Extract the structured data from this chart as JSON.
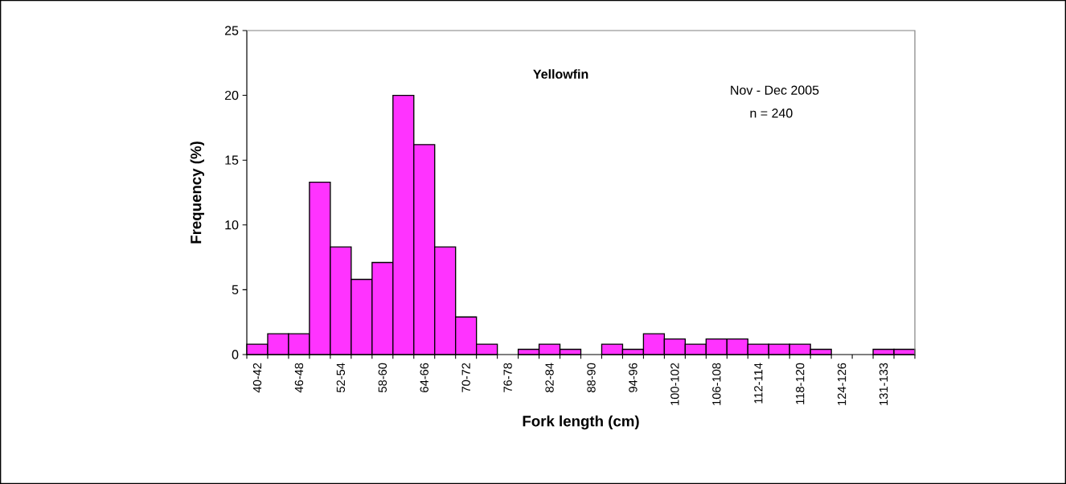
{
  "chart_data": {
    "type": "bar",
    "title": "Yellowfin",
    "xlabel": "Fork length (cm)",
    "ylabel": "Frequency (%)",
    "annotations": [
      "Nov - Dec 2005",
      "n = 240"
    ],
    "categories": [
      "40-42",
      null,
      "46-48",
      null,
      "52-54",
      null,
      "58-60",
      null,
      "64-66",
      null,
      "70-72",
      null,
      "76-78",
      null,
      "82-84",
      null,
      "88-90",
      null,
      "94-96",
      null,
      "100-102",
      null,
      "106-108",
      null,
      "112-114",
      null,
      "118-120",
      null,
      "124-126",
      null,
      "131-133",
      null
    ],
    "values": [
      0.8,
      1.6,
      1.6,
      13.3,
      8.3,
      5.8,
      7.1,
      20.0,
      16.2,
      8.3,
      2.9,
      0.8,
      0,
      0.4,
      0.8,
      0.4,
      0,
      0.8,
      0.4,
      1.6,
      1.2,
      0.8,
      1.2,
      1.2,
      0.8,
      0.8,
      0.8,
      0.4,
      0,
      0,
      0.4,
      0.4
    ],
    "color": "#ff33ff",
    "ylim": [
      0,
      25
    ],
    "yticks": [
      0,
      5,
      10,
      15,
      20,
      25
    ],
    "grid": false
  }
}
